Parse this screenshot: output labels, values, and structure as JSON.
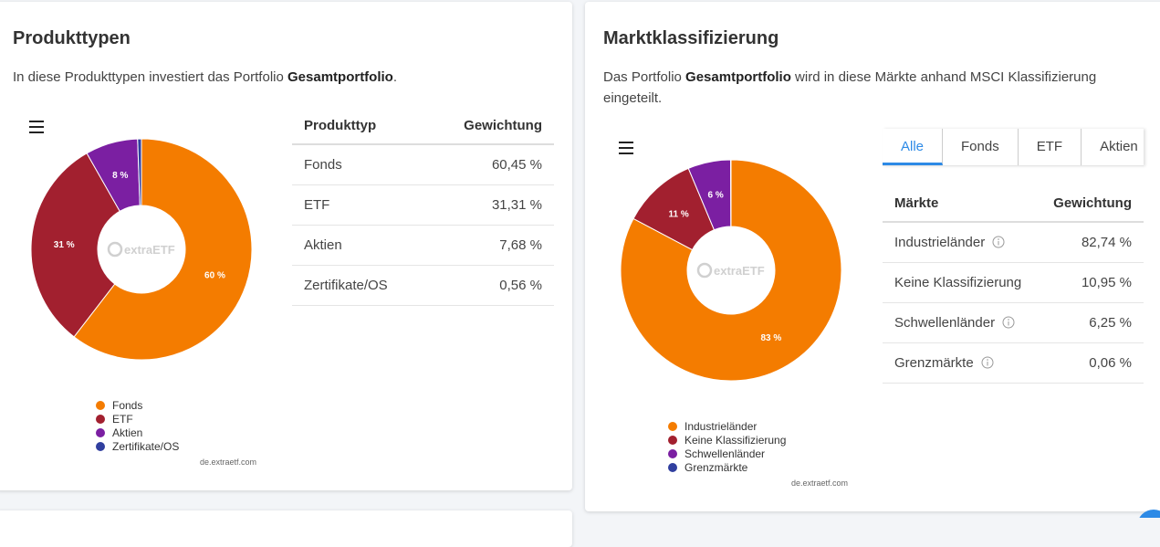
{
  "panels": [
    {
      "title": "Produkttypen",
      "intro": {
        "before": "In diese Produkttypen investiert das Portfolio ",
        "bold": "Gesamtportfolio",
        "after": "."
      },
      "table": {
        "header": [
          "Produkttyp",
          "Gewichtung"
        ],
        "rows": [
          [
            "Fonds",
            "60,45 %"
          ],
          [
            "ETF",
            "31,31 %"
          ],
          [
            "Aktien",
            "7,68 %"
          ],
          [
            "Zertifikate/OS",
            "0,56 %"
          ]
        ]
      }
    },
    {
      "title": "Marktklassifizierung",
      "intro": {
        "before": "Das Portfolio ",
        "bold": "Gesamtportfolio",
        "after": " wird in diese Märkte anhand MSCI Klassifizierung eingeteilt."
      },
      "tabs": [
        "Alle",
        "Fonds",
        "ETF",
        "Aktien"
      ],
      "table": {
        "header": [
          "Märkte",
          "Gewichtung"
        ],
        "rows": [
          [
            "Industrieländer",
            "82,74 %"
          ],
          [
            "Keine Klassifizierung",
            "10,95 %"
          ],
          [
            "Schwellenländer",
            "6,25 %"
          ],
          [
            "Grenzmärkte",
            "0,06 %"
          ]
        ]
      }
    }
  ],
  "chart_data": [
    {
      "type": "donut",
      "categories": [
        "Fonds",
        "ETF",
        "Aktien",
        "Zertifikate/OS"
      ],
      "values": [
        60.45,
        31.31,
        7.68,
        0.56
      ],
      "value_labels": [
        "60 %",
        "31 %",
        "8 %",
        null
      ],
      "colors": [
        "#f47c00",
        "#a2202f",
        "#7b1fa2",
        "#303f9f"
      ],
      "watermark": "extraETF",
      "credit": "de.extraetf.com"
    },
    {
      "type": "donut",
      "categories": [
        "Industrieländer",
        "Keine Klassifizierung",
        "Schwellenländer",
        "Grenzmärkte"
      ],
      "values": [
        82.74,
        10.95,
        6.25,
        0.06
      ],
      "value_labels": [
        "83 %",
        "11 %",
        "6 %",
        null
      ],
      "colors": [
        "#f47c00",
        "#a2202f",
        "#7b1fa2",
        "#303f9f"
      ],
      "watermark": "extraETF",
      "credit": "de.extraetf.com"
    }
  ]
}
